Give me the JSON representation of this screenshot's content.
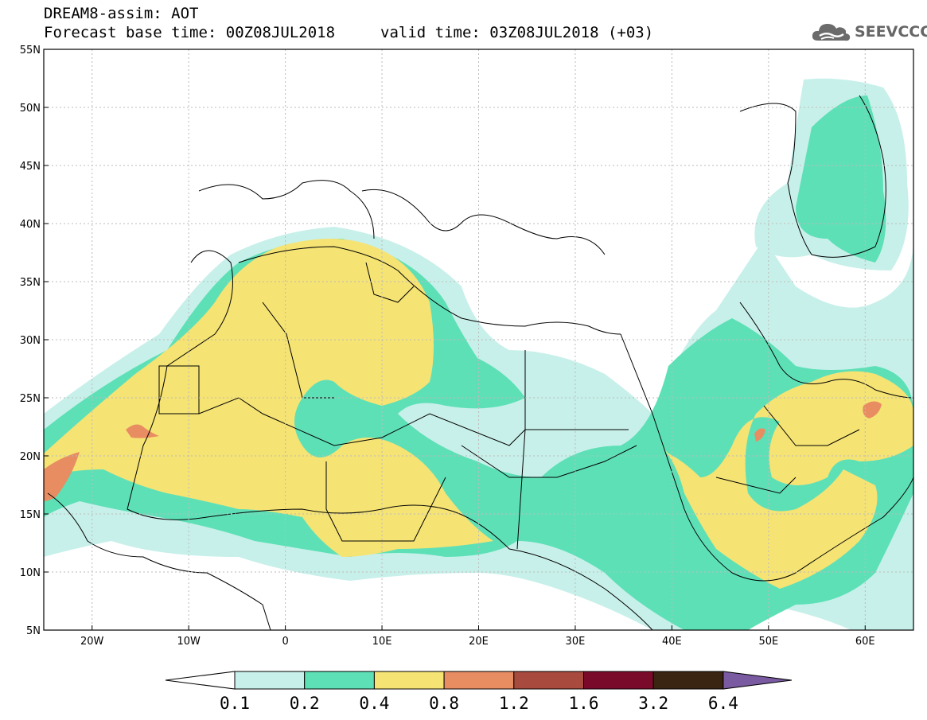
{
  "header": {
    "title": "DREAM8-assim: AOT",
    "base_time": "Forecast base time: 00Z08JUL2018",
    "valid_time": "valid time: 03Z08JUL2018 (+03)",
    "logo_text": "SEEVCCC",
    "logo_icon": "cloud-icon"
  },
  "map": {
    "lat_labels": [
      "55N",
      "50N",
      "45N",
      "40N",
      "35N",
      "30N",
      "25N",
      "20N",
      "15N",
      "10N",
      "5N"
    ],
    "lon_labels": [
      "20W",
      "10W",
      "0",
      "10E",
      "20E",
      "30E",
      "40E",
      "50E",
      "60E"
    ],
    "extent": {
      "lon": [
        -25,
        65
      ],
      "lat": [
        5,
        55
      ]
    }
  },
  "colorbar": {
    "levels": [
      "0.1",
      "0.2",
      "0.4",
      "0.8",
      "1.2",
      "1.6",
      "3.2",
      "6.4"
    ],
    "colors": [
      "#ffffff",
      "#c8f0ea",
      "#5ee0b7",
      "#f5e374",
      "#e88c62",
      "#a84a3e",
      "#7a0a2a",
      "#3a2412",
      "#7a5aa0"
    ]
  }
}
